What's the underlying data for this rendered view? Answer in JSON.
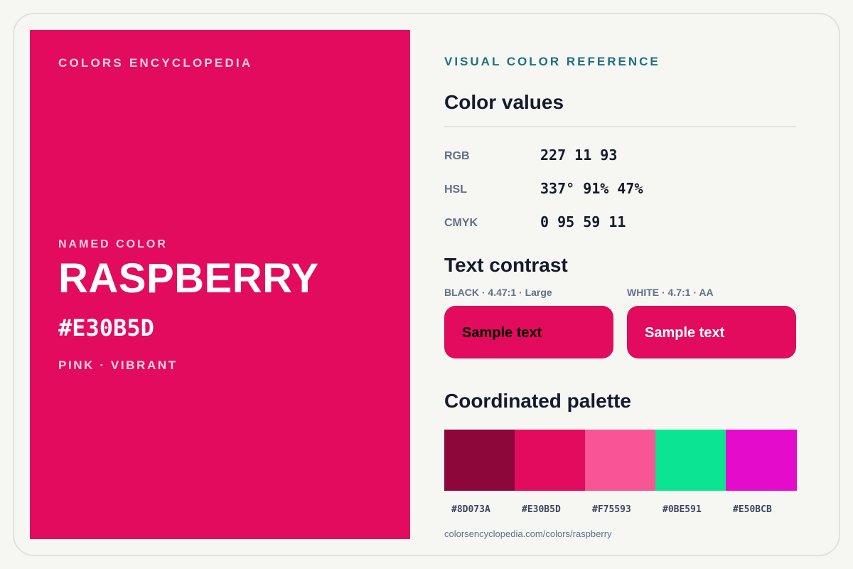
{
  "swatch": {
    "brand": "COLORS ENCYCLOPEDIA",
    "named_label": "NAMED COLOR",
    "name": "RASPBERRY",
    "hex": "#E30B5D",
    "tags": "PINK · VIBRANT",
    "color": "#E30B5D"
  },
  "reference": {
    "eyebrow": "VISUAL COLOR REFERENCE",
    "values_title": "Color values",
    "values": [
      {
        "label": "RGB",
        "value": "227 11 93"
      },
      {
        "label": "HSL",
        "value": "337° 91% 47%"
      },
      {
        "label": "CMYK",
        "value": "0 95 59 11"
      }
    ],
    "contrast_title": "Text contrast",
    "contrast": [
      {
        "label": "BLACK · 4.47:1 · Large",
        "sample": "Sample text",
        "text_color": "#000000"
      },
      {
        "label": "WHITE · 4.7:1 · AA",
        "sample": "Sample text",
        "text_color": "#FFFFFF"
      }
    ],
    "palette_title": "Coordinated palette",
    "palette": [
      {
        "hex": "#8D073A",
        "color": "#8D073A"
      },
      {
        "hex": "#E30B5D",
        "color": "#E30B5D"
      },
      {
        "hex": "#F75593",
        "color": "#F75593"
      },
      {
        "hex": "#0BE591",
        "color": "#0BE591"
      },
      {
        "hex": "#E50BCB",
        "color": "#E50BCB"
      }
    ],
    "url": "colorsencyclopedia.com/colors/raspberry"
  },
  "colors": {
    "accent": "#1F7080",
    "background": "#F6F6F2",
    "heading": "#141B2D",
    "muted": "#62708A"
  }
}
